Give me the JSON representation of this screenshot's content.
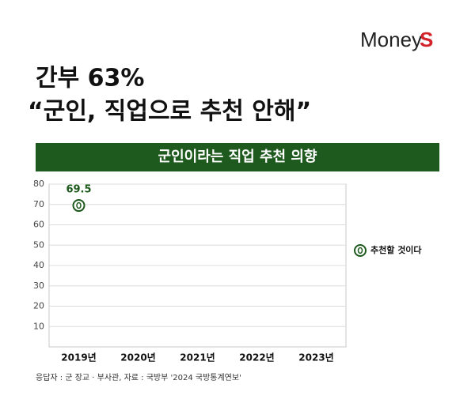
{
  "brand_main": "Money",
  "brand_accent": "S",
  "headline": [
    "간부 63%",
    "“군인, 직업으로 추천 안해”"
  ],
  "source": "응답자 : 군 장교 · 부사관, 자료 : 국방부 '2024 국방통계연보'",
  "chart_data": {
    "type": "line",
    "title": "군인이라는 직업 추천 의향",
    "categories": [
      "2019년",
      "2020년",
      "2021년",
      "2022년",
      "2023년"
    ],
    "series": [
      {
        "name": "추천할 것이다",
        "color": "#1e5a1e",
        "values": [
          69.5,
          null,
          null,
          null,
          null
        ]
      }
    ],
    "ylim": [
      0,
      80
    ],
    "yticks": [
      10,
      20,
      30,
      40,
      50,
      60,
      70,
      80
    ],
    "grid": true,
    "legend": "right"
  }
}
